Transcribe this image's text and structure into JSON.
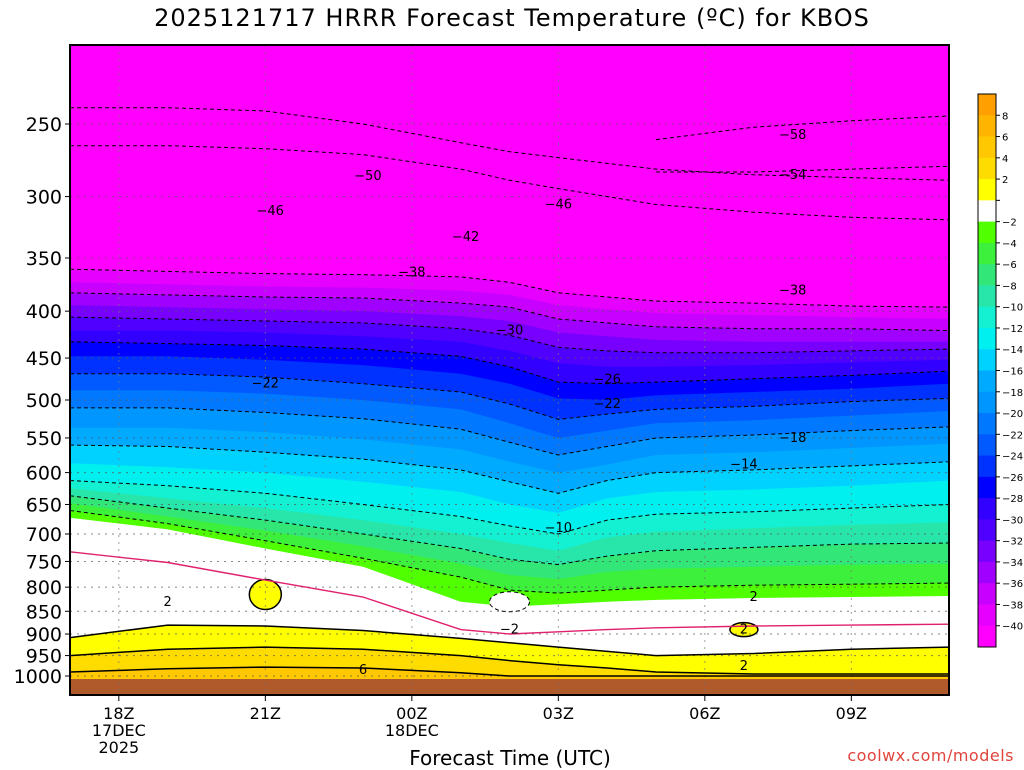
{
  "title": "2025121717 HRRR Forecast Temperature (ºC) for KBOS",
  "xlabel": "Forecast Time (UTC)",
  "credit": "coolwx.com/models",
  "chart_data": {
    "type": "time-height-contour",
    "variable": "Temperature",
    "units": "ºC",
    "model": "HRRR",
    "run": "2025121717",
    "station": "KBOS",
    "y_axis": {
      "ticks": [
        250,
        300,
        350,
        400,
        450,
        500,
        550,
        600,
        650,
        700,
        750,
        800,
        850,
        900,
        950,
        1000
      ],
      "scale": "log",
      "direction": "inverted"
    },
    "x_axis": {
      "ticks": [
        {
          "hour": 1,
          "lines": [
            "18Z",
            "17DEC",
            "2025"
          ]
        },
        {
          "hour": 4,
          "lines": [
            "21Z"
          ]
        },
        {
          "hour": 7,
          "lines": [
            "00Z",
            "18DEC"
          ]
        },
        {
          "hour": 10,
          "lines": [
            "03Z"
          ]
        },
        {
          "hour": 13,
          "lines": [
            "06Z"
          ]
        },
        {
          "hour": 16,
          "lines": [
            "09Z"
          ]
        }
      ],
      "range_hours": [
        0,
        18
      ]
    },
    "colorbar": {
      "labels": [
        "8",
        "6",
        "4",
        "2",
        "",
        "−2",
        "−4",
        "−6",
        "−8",
        "−10",
        "−12",
        "−14",
        "−16",
        "−18",
        "−20",
        "−22",
        "−24",
        "−26",
        "−28",
        "−30",
        "−32",
        "−34",
        "−36",
        "−38",
        "−40"
      ],
      "colors": [
        "#ffa000",
        "#ffb400",
        "#ffc800",
        "#ffdc00",
        "#ffff00",
        "#ffffff",
        "#50ff00",
        "#3cf03c",
        "#32e678",
        "#28e6aa",
        "#14f0d2",
        "#00f0f0",
        "#00d2ff",
        "#00aaff",
        "#0096ff",
        "#0078ff",
        "#005aff",
        "#0032ff",
        "#0000ff",
        "#3200ff",
        "#5000ff",
        "#7800ff",
        "#a000ff",
        "#c800ff",
        "#e600ff",
        "#ff00ff"
      ]
    },
    "band_profiles": {
      "hours": [
        0,
        2,
        4,
        6,
        8,
        9,
        10,
        11,
        12,
        14,
        16,
        18
      ],
      "note": "pressure (hPa) at which each isotherm sits",
      "levels": [
        {
          "t": -44,
          "p": [
            335,
            333,
            334,
            334,
            335,
            338,
            346,
            348,
            349,
            348,
            350,
            352
          ]
        },
        {
          "t": -40,
          "p": [
            350,
            351,
            353,
            354,
            356,
            362,
            370,
            374,
            376,
            377,
            380,
            382
          ]
        },
        {
          "t": -38,
          "p": [
            360,
            362,
            364,
            365,
            367,
            372,
            382,
            386,
            390,
            392,
            395,
            396
          ]
        },
        {
          "t": -36,
          "p": [
            372,
            374,
            376,
            377,
            380,
            384,
            394,
            398,
            402,
            404,
            406,
            408
          ]
        },
        {
          "t": -34,
          "p": [
            382,
            384,
            386,
            387,
            392,
            396,
            408,
            412,
            416,
            418,
            418,
            420
          ]
        },
        {
          "t": -32,
          "p": [
            394,
            396,
            398,
            400,
            405,
            410,
            422,
            426,
            430,
            432,
            432,
            432
          ]
        },
        {
          "t": -30,
          "p": [
            406,
            408,
            410,
            412,
            418,
            425,
            438,
            442,
            444,
            444,
            442,
            440
          ]
        },
        {
          "t": -28,
          "p": [
            420,
            420,
            422,
            426,
            432,
            442,
            456,
            460,
            460,
            458,
            455,
            452
          ]
        },
        {
          "t": -26,
          "p": [
            432,
            434,
            436,
            440,
            448,
            460,
            478,
            480,
            478,
            474,
            470,
            465
          ]
        },
        {
          "t": -24,
          "p": [
            448,
            448,
            452,
            458,
            468,
            480,
            498,
            500,
            494,
            490,
            486,
            480
          ]
        },
        {
          "t": -22,
          "p": [
            468,
            468,
            472,
            480,
            490,
            505,
            525,
            518,
            512,
            508,
            502,
            498
          ]
        },
        {
          "t": -20,
          "p": [
            488,
            488,
            492,
            500,
            512,
            530,
            550,
            540,
            530,
            526,
            520,
            514
          ]
        },
        {
          "t": -18,
          "p": [
            510,
            510,
            516,
            524,
            538,
            556,
            574,
            562,
            550,
            546,
            540,
            535
          ]
        },
        {
          "t": -16,
          "p": [
            536,
            536,
            542,
            552,
            566,
            584,
            600,
            588,
            574,
            570,
            564,
            558
          ]
        },
        {
          "t": -14,
          "p": [
            560,
            562,
            570,
            580,
            596,
            614,
            632,
            612,
            600,
            596,
            590,
            584
          ]
        },
        {
          "t": -12,
          "p": [
            586,
            592,
            600,
            614,
            630,
            650,
            664,
            640,
            630,
            626,
            620,
            612
          ]
        },
        {
          "t": -10,
          "p": [
            612,
            620,
            632,
            650,
            670,
            686,
            700,
            676,
            666,
            662,
            656,
            650
          ]
        },
        {
          "t": -8,
          "p": [
            624,
            640,
            656,
            676,
            700,
            716,
            730,
            706,
            696,
            690,
            684,
            680
          ]
        },
        {
          "t": -6,
          "p": [
            636,
            656,
            676,
            700,
            726,
            746,
            756,
            740,
            730,
            724,
            718,
            716
          ]
        },
        {
          "t": -4,
          "p": [
            648,
            670,
            694,
            722,
            754,
            776,
            784,
            770,
            764,
            760,
            756,
            754
          ]
        },
        {
          "t": -2,
          "p": [
            660,
            682,
            712,
            744,
            780,
            806,
            812,
            806,
            800,
            796,
            794,
            792
          ]
        },
        {
          "t": 0,
          "p": [
            672,
            692,
            726,
            760,
            830,
            840,
            835,
            830,
            826,
            822,
            820,
            818
          ]
        }
      ],
      "warm_layers": [
        {
          "t": 2,
          "p": [
            908,
            880,
            882,
            892,
            910,
            920,
            930,
            940,
            950,
            945,
            935,
            930
          ]
        },
        {
          "t": 4,
          "p": [
            950,
            935,
            930,
            935,
            950,
            962,
            972,
            980,
            990,
            995,
            995,
            995
          ]
        },
        {
          "t": 6,
          "p": [
            990,
            982,
            978,
            980,
            992,
            1000,
            1000,
            1000,
            1000,
            1000,
            1000,
            1000
          ]
        }
      ],
      "cold_top_contours": [
        {
          "t": -58,
          "p": [
            null,
            null,
            null,
            null,
            null,
            null,
            null,
            null,
            260,
            252,
            248,
            245
          ]
        },
        {
          "t": -54,
          "p": [
            null,
            null,
            null,
            null,
            null,
            null,
            null,
            null,
            282,
            282,
            280,
            278
          ]
        },
        {
          "t": -50,
          "p": [
            240,
            240,
            242,
            250,
            262,
            268,
            272,
            276,
            280,
            284,
            286,
            288
          ]
        },
        {
          "t": -46,
          "p": [
            264,
            264,
            266,
            270,
            280,
            288,
            294,
            300,
            306,
            312,
            316,
            318
          ]
        }
      ]
    },
    "labeled_isotherms": [
      {
        "label": "−58",
        "hour": 14.8,
        "p": 257
      },
      {
        "label": "−54",
        "hour": 14.8,
        "p": 284
      },
      {
        "label": "−50",
        "hour": 6.1,
        "p": 285
      },
      {
        "label": "−46",
        "hour": 4.1,
        "p": 311
      },
      {
        "label": "−46",
        "hour": 10.0,
        "p": 306
      },
      {
        "label": "−42",
        "hour": 8.1,
        "p": 332
      },
      {
        "label": "−38",
        "hour": 7.0,
        "p": 363
      },
      {
        "label": "−38",
        "hour": 14.8,
        "p": 380
      },
      {
        "label": "−30",
        "hour": 9.0,
        "p": 420
      },
      {
        "label": "−26",
        "hour": 11.0,
        "p": 475
      },
      {
        "label": "−22",
        "hour": 4.0,
        "p": 480
      },
      {
        "label": "−22",
        "hour": 11.0,
        "p": 505
      },
      {
        "label": "−18",
        "hour": 14.8,
        "p": 550
      },
      {
        "label": "−14",
        "hour": 13.8,
        "p": 588
      },
      {
        "label": "−10",
        "hour": 10.0,
        "p": 690
      },
      {
        "label": "2",
        "hour": 2.0,
        "p": 830
      },
      {
        "label": "2",
        "hour": 14.0,
        "p": 820
      },
      {
        "label": "2",
        "hour": 13.8,
        "p": 890
      },
      {
        "label": "2",
        "hour": 13.8,
        "p": 975
      },
      {
        "label": "−2",
        "hour": 9.0,
        "p": 890
      },
      {
        "label": "6",
        "hour": 6.0,
        "p": 985
      }
    ]
  }
}
